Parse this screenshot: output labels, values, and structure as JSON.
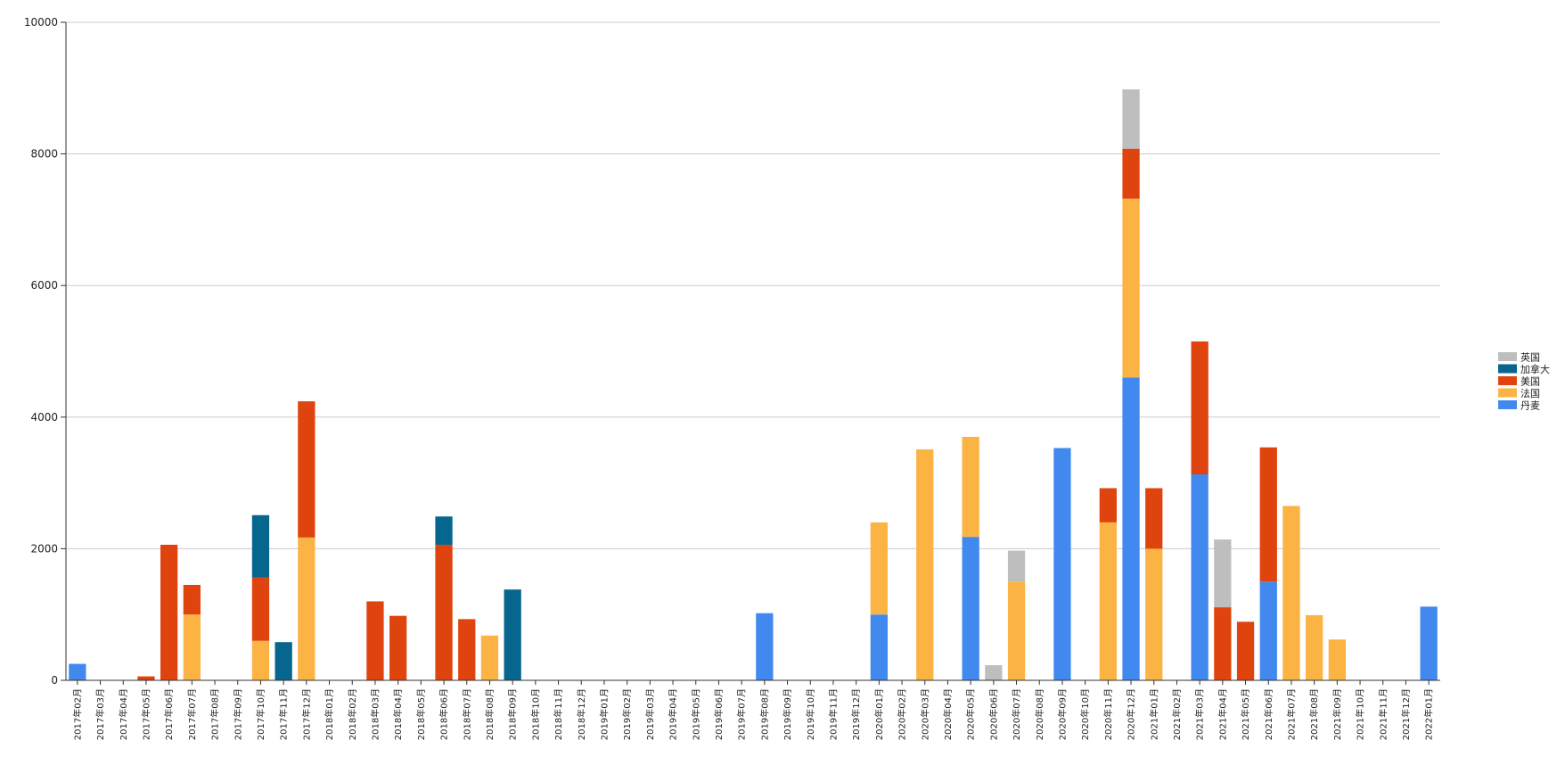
{
  "chart_data": {
    "type": "bar",
    "stacked": true,
    "title": "",
    "xlabel": "",
    "ylabel": "",
    "ylim": [
      0,
      10000
    ],
    "yticks": [
      0,
      2000,
      4000,
      6000,
      8000,
      10000
    ],
    "grid": "horizontal",
    "legend_position": "right",
    "categories": [
      "2017年02月",
      "2017年03月",
      "2017年04月",
      "2017年05月",
      "2017年06月",
      "2017年07月",
      "2017年08月",
      "2017年09月",
      "2017年10月",
      "2017年11月",
      "2017年12月",
      "2018年01月",
      "2018年02月",
      "2018年03月",
      "2018年04月",
      "2018年05月",
      "2018年06月",
      "2018年07月",
      "2018年08月",
      "2018年09月",
      "2018年10月",
      "2018年11月",
      "2018年12月",
      "2019年01月",
      "2019年02月",
      "2019年03月",
      "2019年04月",
      "2019年05月",
      "2019年06月",
      "2019年07月",
      "2019年08月",
      "2019年09月",
      "2019年10月",
      "2019年11月",
      "2019年12月",
      "2020年01月",
      "2020年02月",
      "2020年03月",
      "2020年04月",
      "2020年05月",
      "2020年06月",
      "2020年07月",
      "2020年08月",
      "2020年09月",
      "2020年10月",
      "2020年11月",
      "2020年12月",
      "2021年01月",
      "2021年02月",
      "2021年03月",
      "2021年04月",
      "2021年05月",
      "2021年06月",
      "2021年07月",
      "2021年08月",
      "2021年09月",
      "2021年10月",
      "2021年11月",
      "2021年12月",
      "2022年01月"
    ],
    "series": [
      {
        "name": "丹麦",
        "color": "#4189ee",
        "values": [
          250,
          0,
          0,
          0,
          0,
          0,
          0,
          0,
          0,
          0,
          0,
          0,
          0,
          0,
          0,
          0,
          0,
          0,
          0,
          0,
          0,
          0,
          0,
          0,
          0,
          0,
          0,
          0,
          0,
          0,
          1020,
          0,
          0,
          0,
          0,
          1000,
          0,
          0,
          0,
          2180,
          0,
          0,
          0,
          3530,
          0,
          0,
          4600,
          0,
          0,
          3130,
          0,
          0,
          1500,
          0,
          0,
          0,
          0,
          0,
          0,
          1120
        ]
      },
      {
        "name": "法国",
        "color": "#fbb344",
        "values": [
          0,
          0,
          0,
          0,
          0,
          1000,
          0,
          0,
          600,
          0,
          2170,
          0,
          0,
          0,
          0,
          0,
          0,
          0,
          680,
          0,
          0,
          0,
          0,
          0,
          0,
          0,
          0,
          0,
          0,
          0,
          0,
          0,
          0,
          0,
          0,
          1400,
          0,
          3510,
          0,
          1520,
          0,
          1500,
          0,
          0,
          0,
          2400,
          2720,
          2000,
          0,
          0,
          0,
          0,
          0,
          2650,
          990,
          620,
          0,
          0,
          0,
          0
        ]
      },
      {
        "name": "美国",
        "color": "#e0440e",
        "values": [
          0,
          0,
          0,
          60,
          2060,
          450,
          0,
          0,
          960,
          0,
          2070,
          0,
          0,
          1200,
          980,
          0,
          2060,
          930,
          0,
          0,
          0,
          0,
          0,
          0,
          0,
          0,
          0,
          0,
          0,
          0,
          0,
          0,
          0,
          0,
          0,
          0,
          0,
          0,
          0,
          0,
          0,
          0,
          0,
          0,
          0,
          520,
          760,
          920,
          0,
          2020,
          1110,
          890,
          2040,
          0,
          0,
          0,
          0,
          0,
          0,
          0
        ]
      },
      {
        "name": "加拿大",
        "color": "#07668e",
        "values": [
          0,
          0,
          0,
          0,
          0,
          0,
          0,
          0,
          950,
          580,
          0,
          0,
          0,
          0,
          0,
          0,
          430,
          0,
          0,
          1380,
          0,
          0,
          0,
          0,
          0,
          0,
          0,
          0,
          0,
          0,
          0,
          0,
          0,
          0,
          0,
          0,
          0,
          0,
          0,
          0,
          0,
          0,
          0,
          0,
          0,
          0,
          0,
          0,
          0,
          0,
          0,
          0,
          0,
          0,
          0,
          0,
          0,
          0,
          0,
          0
        ]
      },
      {
        "name": "英国",
        "color": "#bebebe",
        "values": [
          0,
          0,
          0,
          0,
          0,
          0,
          0,
          0,
          0,
          0,
          0,
          0,
          0,
          0,
          0,
          0,
          0,
          0,
          0,
          0,
          0,
          0,
          0,
          0,
          0,
          0,
          0,
          0,
          0,
          0,
          0,
          0,
          0,
          0,
          0,
          0,
          0,
          0,
          0,
          0,
          230,
          470,
          0,
          0,
          0,
          0,
          900,
          0,
          0,
          0,
          1030,
          0,
          0,
          0,
          0,
          0,
          0,
          0,
          0,
          0
        ]
      }
    ],
    "legend_order": [
      "英国",
      "加拿大",
      "美国",
      "法国",
      "丹麦"
    ]
  }
}
